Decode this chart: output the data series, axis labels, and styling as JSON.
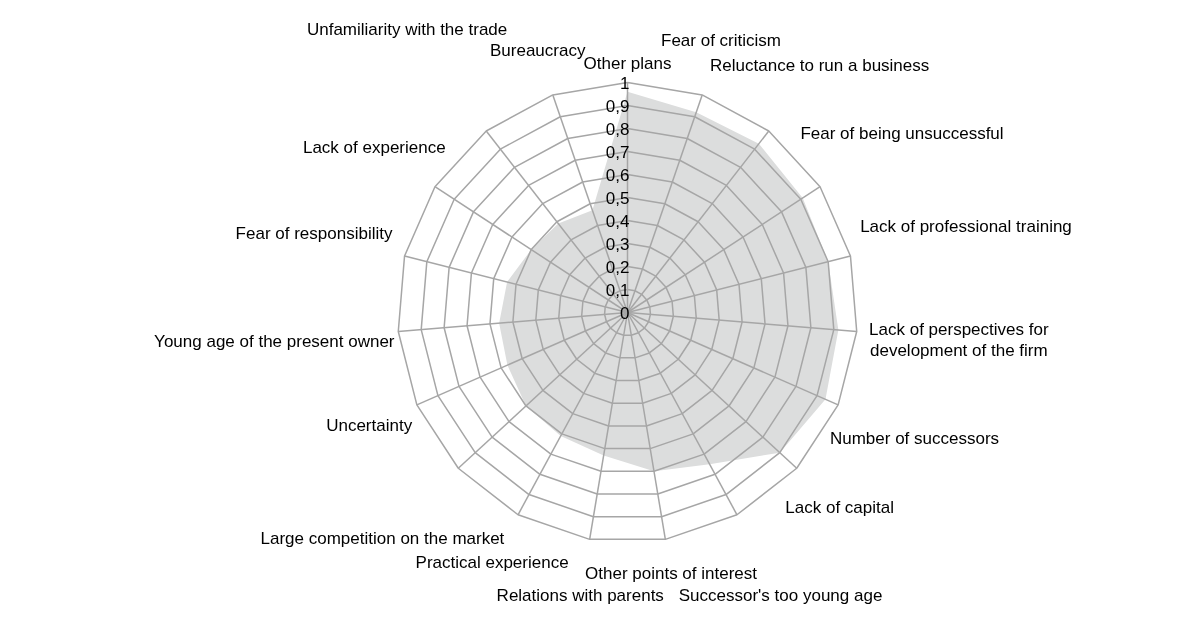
{
  "chart_data": {
    "type": "radar",
    "categories": [
      "Other plans",
      "Fear of criticism",
      "Reluctance to run a business",
      "Fear of being unsuccessful",
      "Lack of professional training",
      "Lack of perspectives for\ndevelopment of the firm",
      "Number of successors",
      "Lack of capital",
      "Successor's too young age",
      "Other points of interest",
      "Relations with parents",
      "Practical experience",
      "Large competition on the market",
      "Uncertainty",
      "Young age of the present owner",
      "Fear of responsibility",
      "Lack of experience",
      "Unfamiliarity with the trade",
      "Bureaucracy"
    ],
    "series": [
      {
        "color": "#dcdddd",
        "type": "area",
        "values": [
          0.96,
          0.92,
          0.93,
          0.91,
          0.9,
          0.92,
          0.94,
          0.9,
          0.75,
          0.7,
          0.63,
          0.61,
          0.6,
          0.57,
          0.56,
          0.54,
          0.5,
          0.49,
          0.47
        ]
      }
    ],
    "ylim": [
      0,
      1
    ],
    "yticks": [
      0,
      {
        "value": 0.1,
        "label": "0,1"
      },
      {
        "value": 0.2,
        "label": "0,2"
      },
      {
        "value": 0.3,
        "label": "0,3"
      },
      {
        "value": 0.4,
        "label": "0,4"
      },
      {
        "value": 0.5,
        "label": "0,5"
      },
      {
        "value": 0.6,
        "label": "0,6"
      },
      {
        "value": 0.7,
        "label": "0,7"
      },
      {
        "value": 0.8,
        "label": "0,8"
      },
      {
        "value": 0.9,
        "label": "0,9"
      },
      1
    ],
    "grid": true
  }
}
